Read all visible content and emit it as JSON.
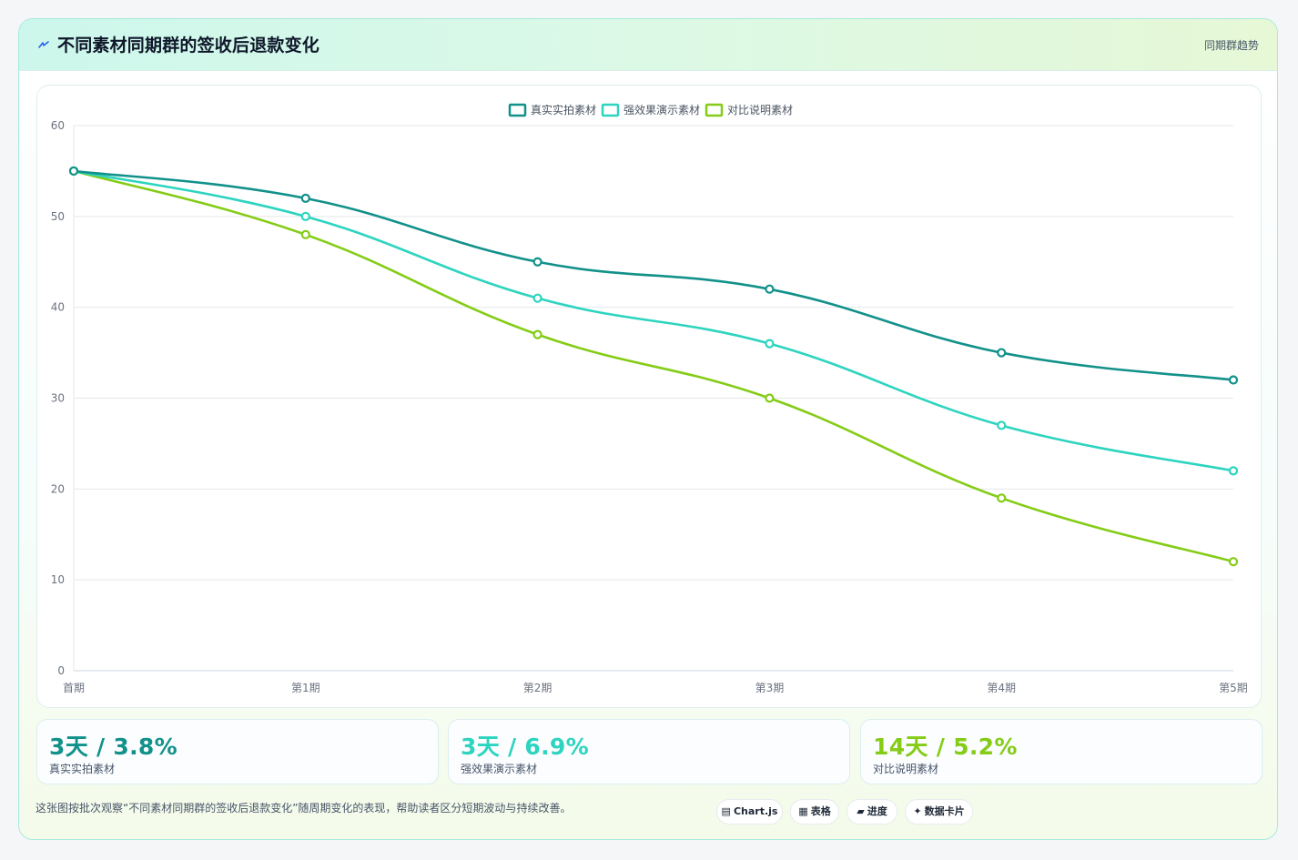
{
  "header": {
    "title": "不同素材同期群的签收后退款变化",
    "tag": "同期群趋势",
    "icon": "lightning-icon"
  },
  "chart_data": {
    "type": "line",
    "categories": [
      "首期",
      "第1期",
      "第2期",
      "第3期",
      "第4期",
      "第5期"
    ],
    "ylim": [
      0,
      60
    ],
    "yticks": [
      0,
      10,
      20,
      30,
      40,
      50,
      60
    ],
    "legend_position": "top-center",
    "grid": true,
    "series": [
      {
        "name": "真实实拍素材",
        "color": "#12918a",
        "values": [
          55,
          52,
          45,
          42,
          35,
          32
        ]
      },
      {
        "name": "强效果演示素材",
        "color": "#2dd4bf",
        "values": [
          55,
          50,
          41,
          36,
          27,
          22
        ]
      },
      {
        "name": "对比说明素材",
        "color": "#84cc16",
        "values": [
          55,
          48,
          37,
          30,
          19,
          12
        ]
      }
    ]
  },
  "stats": [
    {
      "value": "3天 / 3.8%",
      "label": "真实实拍素材",
      "color": "#12918a"
    },
    {
      "value": "3天 / 6.9%",
      "label": "强效果演示素材",
      "color": "#2dd4bf"
    },
    {
      "value": "14天 / 5.2%",
      "label": "对比说明素材",
      "color": "#84cc16"
    }
  ],
  "footer": {
    "note": "这张图按批次观察“不同素材同期群的签收后退款变化”随周期变化的表现，帮助读者区分短期波动与持续改善。",
    "badges": [
      {
        "icon": "chart-icon",
        "glyph": "▤",
        "label": "Chart.js"
      },
      {
        "icon": "table-icon",
        "glyph": "▦",
        "label": "表格"
      },
      {
        "icon": "progress-icon",
        "glyph": "▰",
        "label": "进度"
      },
      {
        "icon": "sparkle-icon",
        "glyph": "✦",
        "label": "数据卡片"
      }
    ]
  }
}
